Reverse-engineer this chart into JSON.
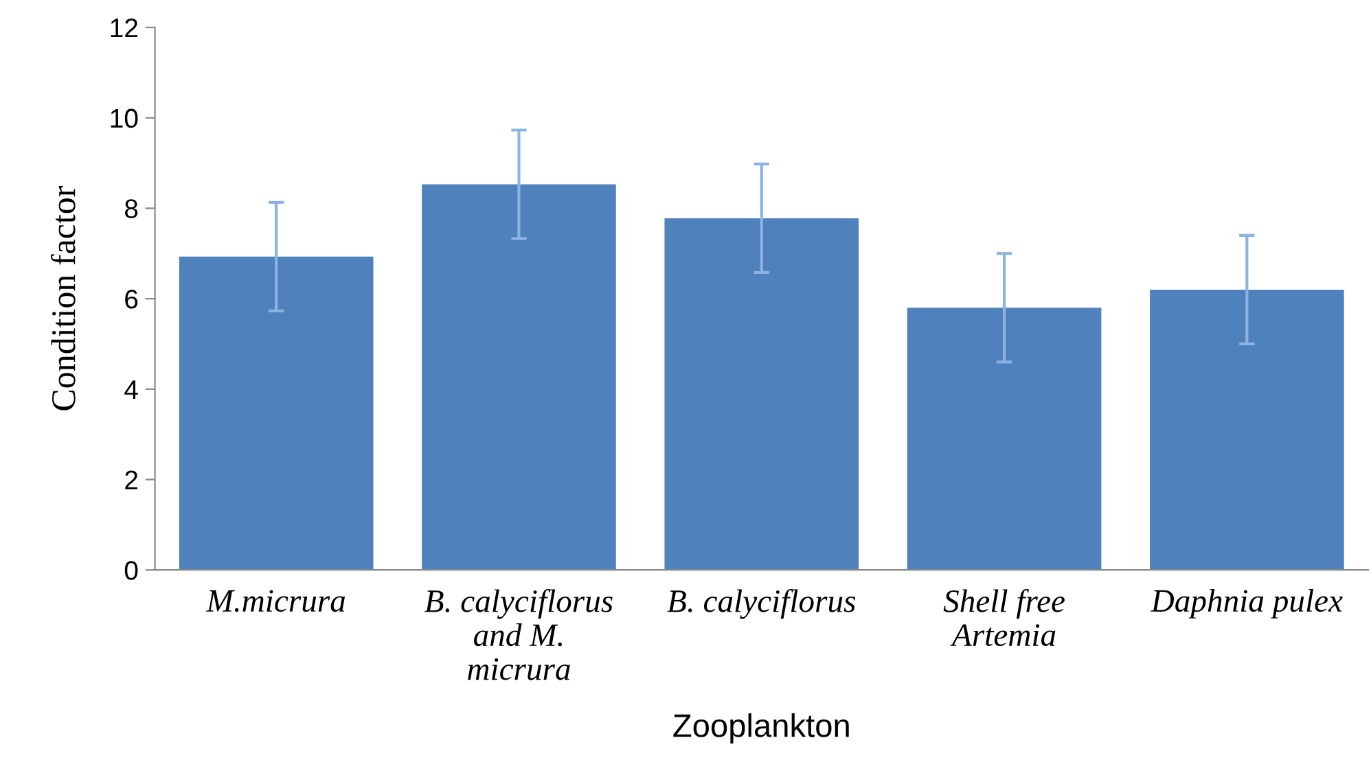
{
  "chart_data": {
    "type": "bar",
    "xlabel": "Zooplankton",
    "ylabel": "Condition factor",
    "categories": [
      "M.micrura",
      "B. calyciflorus\nand M.\nmicrura",
      "B. calyciflorus",
      "Shell free\nArtemia",
      "Daphnia pulex"
    ],
    "values": [
      6.93,
      8.53,
      7.78,
      5.8,
      6.2
    ],
    "errors": [
      1.2,
      1.2,
      1.2,
      1.2,
      1.2
    ],
    "color": "#4f81bd",
    "ylim": [
      0,
      12
    ],
    "yticks": [
      0,
      2,
      4,
      6,
      8,
      10,
      12
    ],
    "grid": false,
    "legend": false
  }
}
